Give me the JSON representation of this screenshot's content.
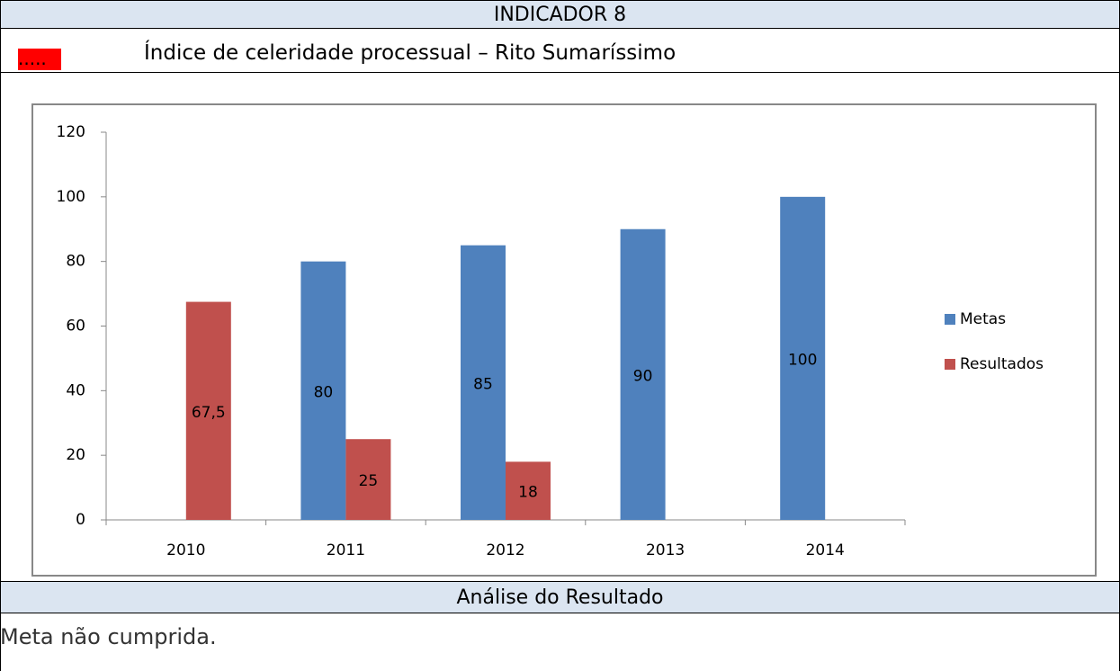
{
  "header": {
    "title": "INDICADOR 8",
    "marker": ".....",
    "subtitle": "Índice de celeridade processual – Rito Sumaríssimo"
  },
  "chart_data": {
    "type": "bar",
    "categories": [
      "2010",
      "2011",
      "2012",
      "2013",
      "2014"
    ],
    "series": [
      {
        "name": "Metas",
        "color": "#4f81bd",
        "values": [
          null,
          80,
          85,
          90,
          100
        ]
      },
      {
        "name": "Resultados",
        "color": "#c0504d",
        "values": [
          67.5,
          25,
          18,
          null,
          null
        ],
        "value_labels": [
          "67,5",
          "25",
          "18",
          null,
          null
        ]
      }
    ],
    "ylim": [
      0,
      120
    ],
    "yticks": [
      0,
      20,
      40,
      60,
      80,
      100,
      120
    ],
    "legend": "right"
  },
  "analysis": {
    "title": "Análise do Resultado",
    "text": "Meta não cumprida."
  }
}
